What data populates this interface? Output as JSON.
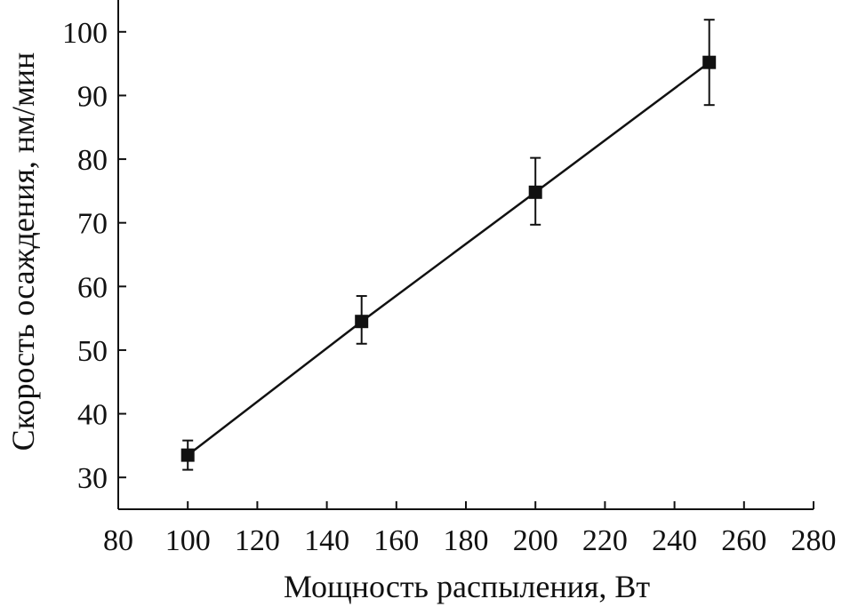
{
  "chart_data": {
    "type": "scatter",
    "title": "",
    "xlabel": "Мощность распыления, Вт",
    "ylabel": "Скорость осаждения, нм/мин",
    "xlim": [
      80,
      280
    ],
    "ylim": [
      25,
      105
    ],
    "x_ticks": [
      80,
      100,
      120,
      140,
      160,
      180,
      200,
      220,
      240,
      260,
      280
    ],
    "y_ticks": [
      30,
      40,
      50,
      60,
      70,
      80,
      90,
      100
    ],
    "grid": false,
    "legend": "none",
    "line_color": "#111111",
    "marker": "square",
    "series": [
      {
        "points": [
          {
            "x": 100,
            "y": 33.5,
            "err_low": 31.2,
            "err_high": 35.8
          },
          {
            "x": 150,
            "y": 54.5,
            "err_low": 51.0,
            "err_high": 58.5
          },
          {
            "x": 200,
            "y": 74.8,
            "err_low": 69.7,
            "err_high": 80.2
          },
          {
            "x": 250,
            "y": 95.2,
            "err_low": 88.5,
            "err_high": 101.9
          }
        ]
      }
    ]
  }
}
